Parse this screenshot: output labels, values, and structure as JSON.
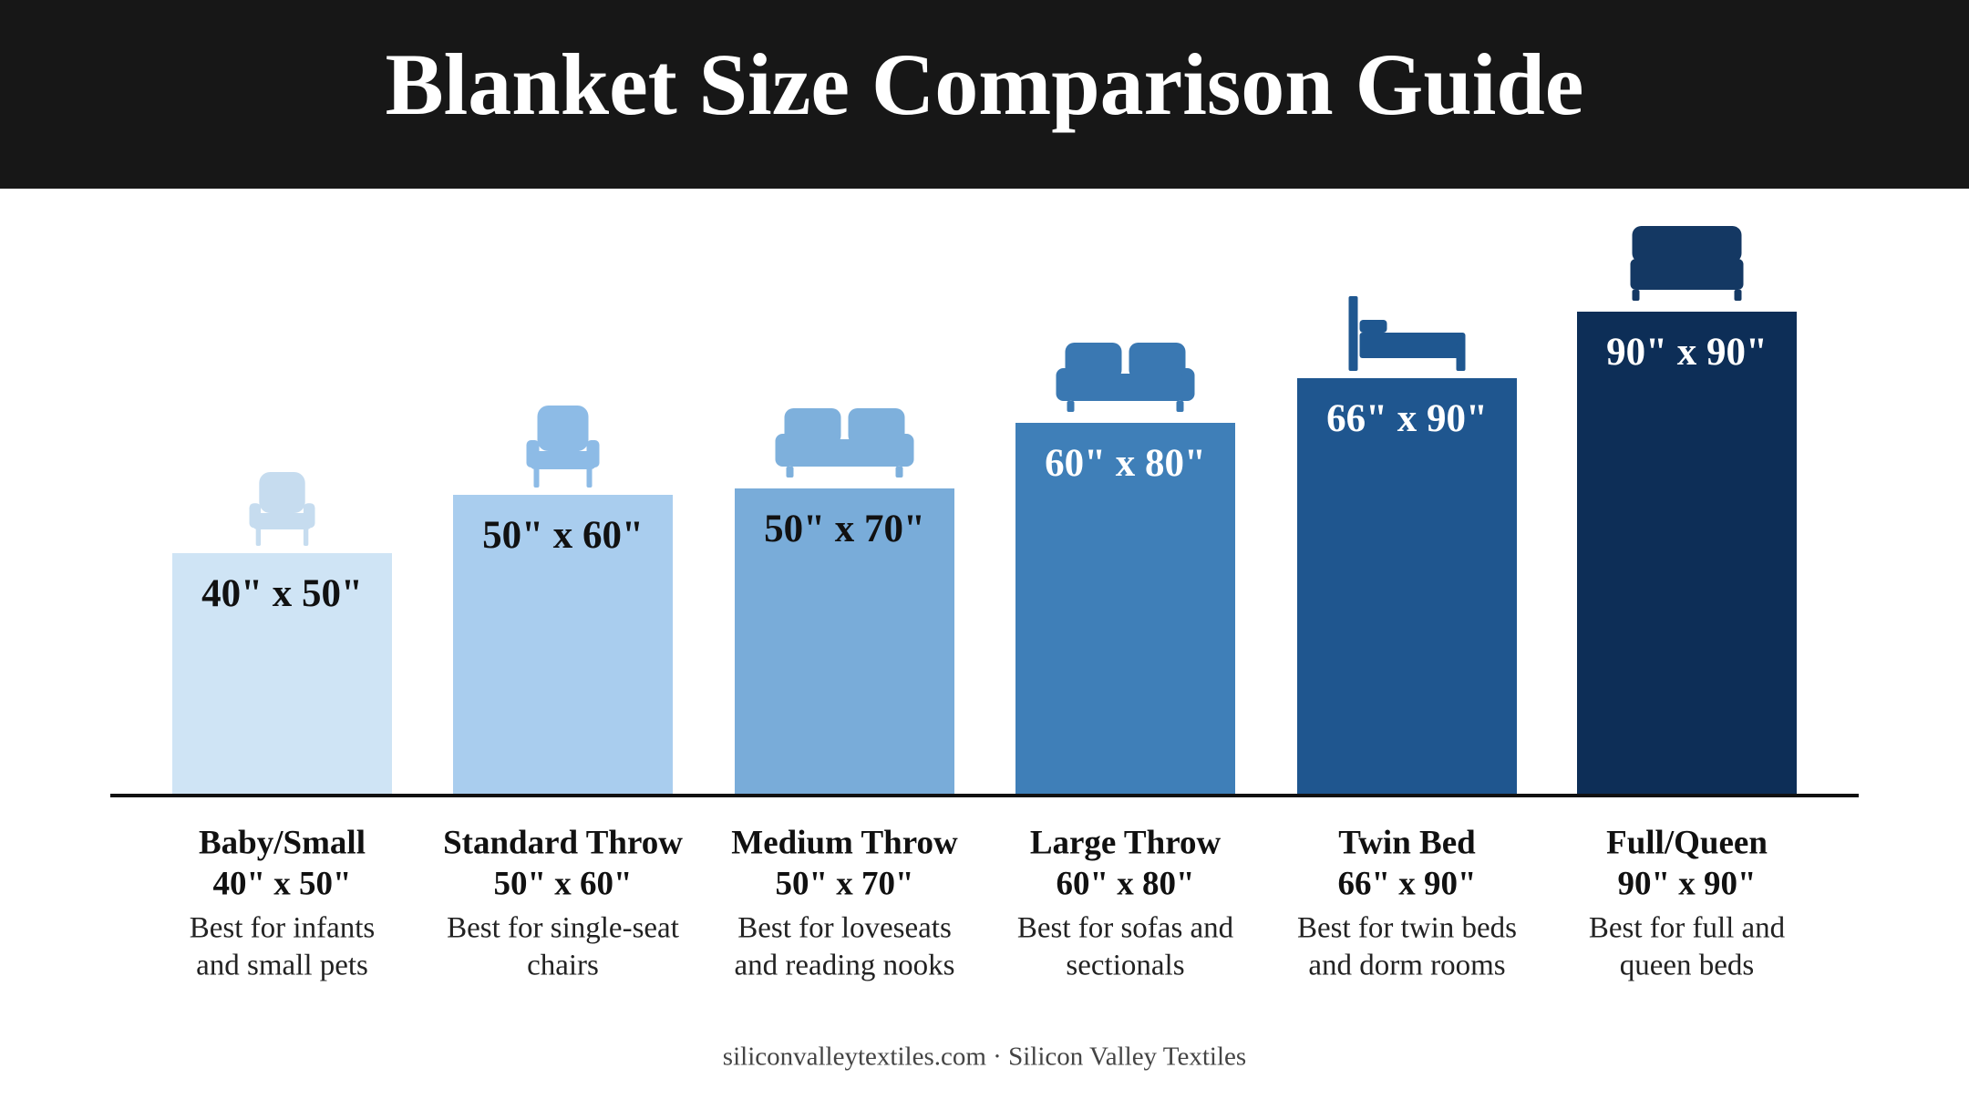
{
  "header": {
    "title": "Blanket Size Comparison Guide"
  },
  "items": [
    {
      "name": "Baby/Small",
      "size": "40\" x 50\"",
      "description": [
        "Best for infants",
        "and small pets"
      ]
    },
    {
      "name": "Standard Throw",
      "size": "50\" x 60\"",
      "description": [
        "Best for single-seat",
        "chairs"
      ]
    },
    {
      "name": "Medium Throw",
      "size": "50\" x 70\"",
      "description": [
        "Best for loveseats",
        "and reading nooks"
      ]
    },
    {
      "name": "Large Throw",
      "size": "60\" x 80\"",
      "description": [
        "Best for sofas and",
        "sectionals"
      ]
    },
    {
      "name": "Twin Bed",
      "size": "66\" x 90\"",
      "description": [
        "Best for twin beds",
        "and dorm rooms"
      ]
    },
    {
      "name": "Full/Queen",
      "size": "90\" x 90\"",
      "description": [
        "Best for full and",
        "queen beds"
      ]
    }
  ],
  "footer": "siliconvalleytextiles.com · Silicon Valley Textiles"
}
